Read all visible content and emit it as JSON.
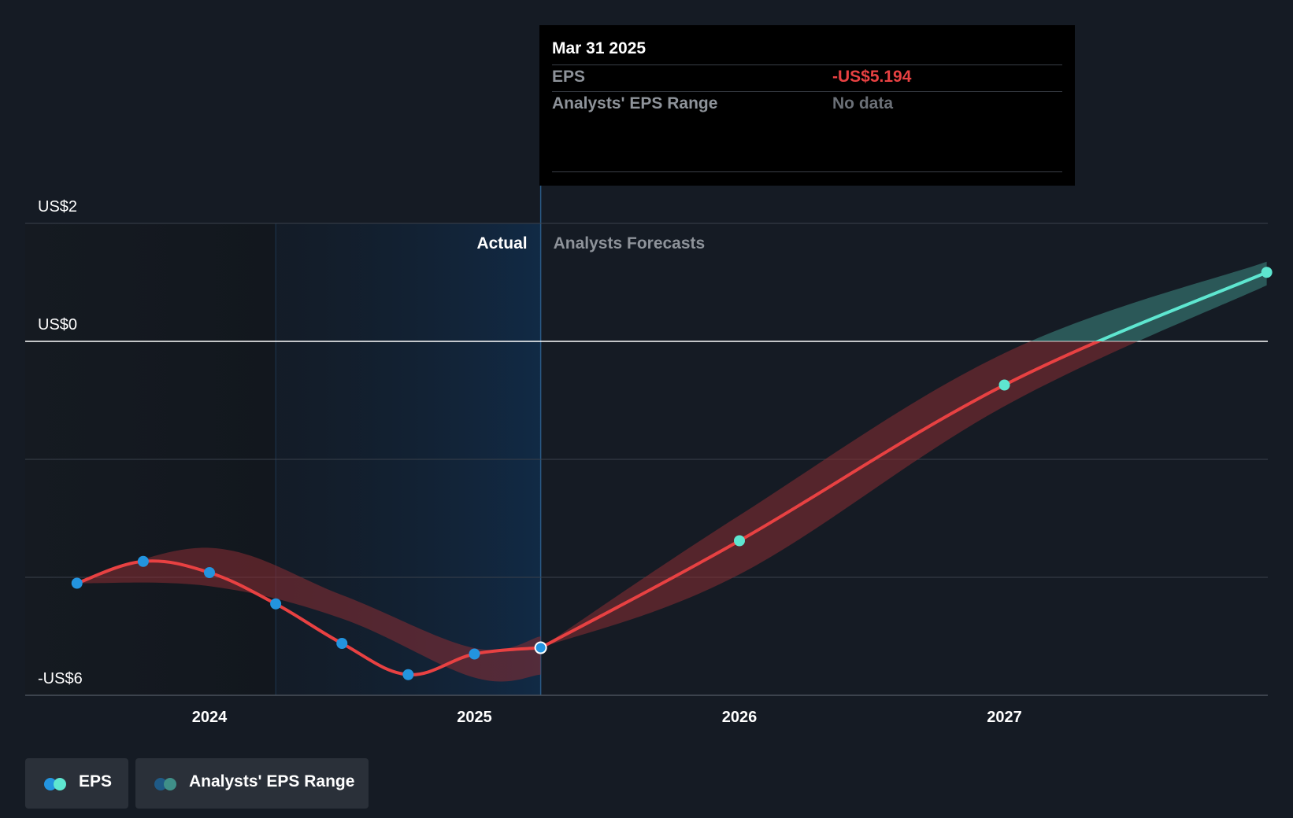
{
  "chart_data": {
    "type": "line",
    "ylim": [
      -6,
      2
    ],
    "y_tick_labels": [
      {
        "value": 2,
        "label": "US$2"
      },
      {
        "value": 0,
        "label": "US$0"
      },
      {
        "value": -6,
        "label": "-US$6"
      }
    ],
    "x_tick_labels": [
      {
        "value": 2024.0,
        "label": "2024"
      },
      {
        "value": 2025.0,
        "label": "2025"
      },
      {
        "value": 2026.0,
        "label": "2026"
      },
      {
        "value": 2027.0,
        "label": "2027"
      }
    ],
    "xlim": [
      2023.3,
      2028.0
    ],
    "actual_label": "Actual",
    "forecast_label": "Analysts Forecasts",
    "actual_region": [
      2024.25,
      2025.25
    ],
    "series": [
      {
        "name": "EPS",
        "type": "actual",
        "color": "#e84142",
        "marker_color": "#2394df",
        "x": [
          2023.5,
          2023.75,
          2024.0,
          2024.25,
          2024.5,
          2024.75,
          2025.0,
          2025.25
        ],
        "y": [
          -4.1,
          -3.73,
          -3.92,
          -4.45,
          -5.12,
          -5.65,
          -5.3,
          -5.194
        ]
      },
      {
        "name": "EPS",
        "type": "forecast",
        "color": "#e84142",
        "positive_color": "#5ee6d0",
        "marker_color": "#5ee6d0",
        "x": [
          2025.25,
          2026.0,
          2027.0,
          2027.99
        ],
        "y": [
          -5.194,
          -3.38,
          -0.74,
          1.17
        ]
      }
    ],
    "ranges": [
      {
        "name": "Analysts' EPS Range",
        "kind": "actual",
        "x": [
          2023.5,
          2024.0,
          2024.5,
          2025.0,
          2025.25
        ],
        "low": [
          -4.1,
          -4.15,
          -4.7,
          -5.7,
          -5.65
        ],
        "high": [
          -4.1,
          -3.5,
          -4.3,
          -5.2,
          -5.0
        ]
      },
      {
        "name": "Analysts' EPS Range",
        "kind": "forecast",
        "x": [
          2025.25,
          2026.0,
          2027.0,
          2027.99
        ],
        "low": [
          -5.194,
          -3.95,
          -1.1,
          0.95
        ],
        "high": [
          -5.194,
          -2.95,
          -0.2,
          1.35
        ]
      }
    ],
    "legend": [
      {
        "label": "EPS",
        "colors": [
          "#2394df",
          "#5ee6d0"
        ]
      },
      {
        "label": "Analysts' EPS Range",
        "colors": [
          "#1f5a86",
          "#3f8f88"
        ]
      }
    ],
    "legend_position": "bottom-left",
    "grid": true
  },
  "tooltip": {
    "date": "Mar 31 2025",
    "rows": [
      {
        "label": "EPS",
        "value": "-US$5.194",
        "color": "#e84142"
      },
      {
        "label": "Analysts' EPS Range",
        "value": "No data",
        "color": "#6b7077"
      }
    ]
  },
  "colors": {
    "background": "#151b24",
    "actual_shade": "#112740",
    "grid": "#3a414b",
    "zero_line": "#ffffff",
    "negative": "#e84142",
    "positive": "#5ee6d0"
  }
}
